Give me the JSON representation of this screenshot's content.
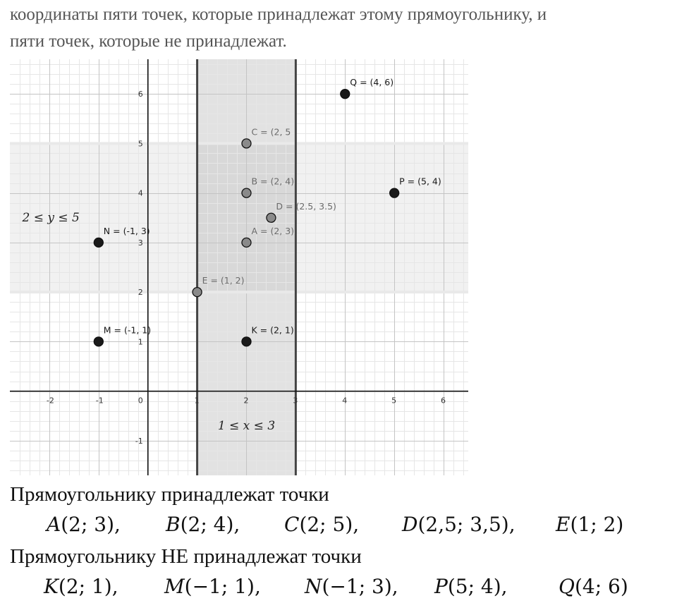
{
  "intro": {
    "line1": "координаты пяти точек, которые принадлежат этому прямоугольнику, и",
    "line2": "пяти точек, которые не принадлежат."
  },
  "chart_data": {
    "type": "scatter",
    "xlim": [
      -2.8,
      6.5
    ],
    "ylim": [
      -1.7,
      6.7
    ],
    "grid": true,
    "x_ticks": [
      "-2",
      "-1",
      "0",
      "1",
      "2",
      "3",
      "4",
      "5",
      "6"
    ],
    "y_ticks": [
      "-1",
      "1",
      "2",
      "3",
      "4",
      "5",
      "6"
    ],
    "vertical_band": {
      "x_range": [
        1,
        3
      ],
      "label": "1 ≤ x ≤ 3"
    },
    "horizontal_band": {
      "y_range": [
        2,
        5
      ],
      "label": "2 ≤ y ≤ 5"
    },
    "points": [
      {
        "label": "C = (2, 5",
        "x": 2,
        "y": 5,
        "inside": true
      },
      {
        "label": "B = (2, 4)",
        "x": 2,
        "y": 4,
        "inside": true
      },
      {
        "label": "D = (2.5, 3.5)",
        "x": 2.5,
        "y": 3.5,
        "inside": true
      },
      {
        "label": "A = (2, 3)",
        "x": 2,
        "y": 3,
        "inside": true
      },
      {
        "label": "E = (1, 2)",
        "x": 1,
        "y": 2,
        "inside": true
      },
      {
        "label": "Q = (4, 6)",
        "x": 4,
        "y": 6,
        "inside": false
      },
      {
        "label": "P = (5, 4)",
        "x": 5,
        "y": 4,
        "inside": false
      },
      {
        "label": "N = (-1, 3)",
        "x": -1,
        "y": 3,
        "inside": false
      },
      {
        "label": "M = (-1, 1)",
        "x": -1,
        "y": 1,
        "inside": false
      },
      {
        "label": "K = (2, 1)",
        "x": 2,
        "y": 1,
        "inside": false
      }
    ],
    "colors": {
      "band": "#e2e2e2",
      "band_overlap": "#cfcfcf",
      "point_inside": "#8a8a8a",
      "point_outside": "#1a1a1a",
      "label_inside": "#6a6a6a",
      "label_outside": "#1a1a1a"
    }
  },
  "answer": {
    "inside_heading": "Прямоугольнику принадлежат точки",
    "inside_points": [
      {
        "name": "A",
        "coords": "(2; 3),"
      },
      {
        "name": "B",
        "coords": "(2; 4),"
      },
      {
        "name": "C",
        "coords": "(2; 5),"
      },
      {
        "name": "D",
        "coords": "(2,5; 3,5),"
      },
      {
        "name": "E",
        "coords": "(1; 2)"
      }
    ],
    "outside_heading": "Прямоугольнику НЕ принадлежат точки",
    "outside_points": [
      {
        "name": "K",
        "coords": "(2; 1),"
      },
      {
        "name": "M",
        "coords": "(−1; 1),"
      },
      {
        "name": "N",
        "coords": "(−1; 3),"
      },
      {
        "name": "P",
        "coords": "(5; 4),"
      },
      {
        "name": "Q",
        "coords": "(4; 6)"
      }
    ]
  }
}
